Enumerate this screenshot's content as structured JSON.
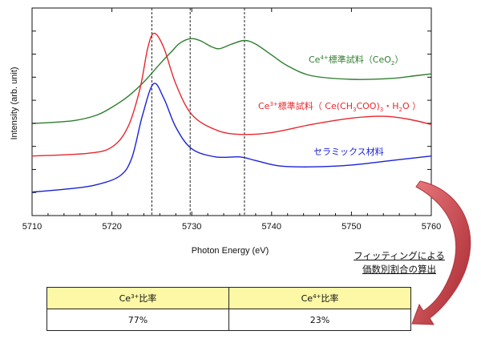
{
  "chart_data": {
    "type": "line",
    "xlabel": "Photon Energy (eV)",
    "ylabel": "Intensity (arb. unit)",
    "xlim": [
      5710,
      5760
    ],
    "x_ticks": [
      5710,
      5720,
      5730,
      5740,
      5750,
      5760
    ],
    "y_ticks_labeled": false,
    "reference_lines_x": [
      5725,
      5729.8,
      5736.6
    ],
    "series": [
      {
        "label_parts": [
          "Ce",
          "4+",
          "標準試料（CeO",
          "2",
          "）"
        ],
        "color": "#2e7d2e",
        "points": [
          [
            5710,
            0.36
          ],
          [
            5715,
            0.375
          ],
          [
            5718,
            0.405
          ],
          [
            5720,
            0.45
          ],
          [
            5722,
            0.51
          ],
          [
            5724,
            0.59
          ],
          [
            5726,
            0.69
          ],
          [
            5727.5,
            0.76
          ],
          [
            5728.5,
            0.805
          ],
          [
            5729.8,
            0.83
          ],
          [
            5731,
            0.82
          ],
          [
            5732.5,
            0.785
          ],
          [
            5733.5,
            0.775
          ],
          [
            5735,
            0.8
          ],
          [
            5736.6,
            0.82
          ],
          [
            5738,
            0.8
          ],
          [
            5740,
            0.74
          ],
          [
            5742,
            0.68
          ],
          [
            5745,
            0.625
          ],
          [
            5750,
            0.605
          ],
          [
            5755,
            0.61
          ],
          [
            5758,
            0.625
          ],
          [
            5760,
            0.635
          ]
        ]
      },
      {
        "label_parts": [
          "Ce",
          "3+",
          "標準試料（ Ce(CH",
          "3",
          "COO)",
          "3",
          "・H",
          "2",
          "O ）"
        ],
        "color": "#e8272d",
        "points": [
          [
            5710,
            0.18
          ],
          [
            5717,
            0.195
          ],
          [
            5720,
            0.23
          ],
          [
            5722,
            0.34
          ],
          [
            5723.5,
            0.55
          ],
          [
            5724.5,
            0.78
          ],
          [
            5725.3,
            0.86
          ],
          [
            5726.5,
            0.78
          ],
          [
            5728,
            0.58
          ],
          [
            5730,
            0.41
          ],
          [
            5733,
            0.325
          ],
          [
            5736,
            0.3
          ],
          [
            5740,
            0.31
          ],
          [
            5745,
            0.355
          ],
          [
            5750,
            0.39
          ],
          [
            5754,
            0.4
          ],
          [
            5757,
            0.385
          ],
          [
            5760,
            0.355
          ]
        ]
      },
      {
        "label_parts": [
          "セラミックス材料"
        ],
        "color": "#1b22d6",
        "points": [
          [
            5710,
            -0.02
          ],
          [
            5715,
            0.0
          ],
          [
            5718,
            0.02
          ],
          [
            5721,
            0.07
          ],
          [
            5722.5,
            0.17
          ],
          [
            5723.8,
            0.4
          ],
          [
            5725.2,
            0.58
          ],
          [
            5726.5,
            0.5
          ],
          [
            5728,
            0.34
          ],
          [
            5730,
            0.22
          ],
          [
            5733,
            0.175
          ],
          [
            5736,
            0.175
          ],
          [
            5738,
            0.155
          ],
          [
            5741,
            0.125
          ],
          [
            5745,
            0.12
          ],
          [
            5750,
            0.13
          ],
          [
            5755,
            0.155
          ],
          [
            5760,
            0.18
          ]
        ]
      }
    ]
  },
  "annotation": {
    "line1": "フィッティングによる",
    "line2": "価数別割合の算出"
  },
  "ratio_table": {
    "col1": {
      "header_base": "Ce",
      "header_sup": "3+",
      "header_tail": "比率",
      "value": "77%"
    },
    "col2": {
      "header_base": "Ce",
      "header_sup": "4+",
      "header_tail": "比率",
      "value": "23%"
    }
  },
  "arrow_color": "#b0363d"
}
